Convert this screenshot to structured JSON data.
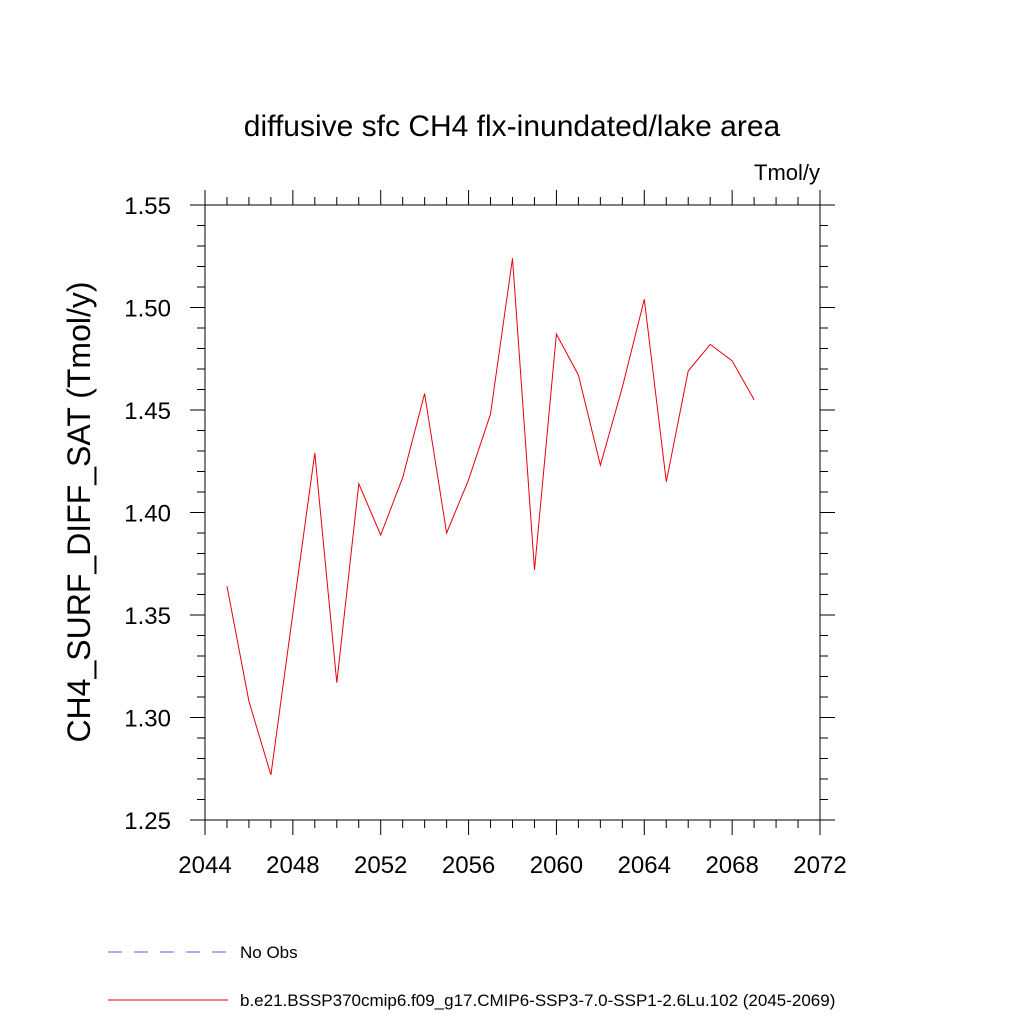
{
  "chart_data": {
    "type": "line",
    "title": "diffusive sfc CH4 flx-inundated/lake area",
    "units": "Tmol/y",
    "xlabel": "",
    "ylabel": "CH4_SURF_DIFF_SAT  (Tmol/y)",
    "xlim": [
      2044,
      2072
    ],
    "ylim": [
      1.25,
      1.55
    ],
    "x_ticks": [
      "2044",
      "2048",
      "2052",
      "2056",
      "2060",
      "2064",
      "2068",
      "2072"
    ],
    "y_ticks": [
      "1.25",
      "1.30",
      "1.35",
      "1.40",
      "1.45",
      "1.50",
      "1.55"
    ],
    "grid": false,
    "legend_position": "bottom",
    "series": [
      {
        "name": "No Obs",
        "color": "#6a5acd",
        "style": "dashed",
        "x": [],
        "values": []
      },
      {
        "name": "b.e21.BSSP370cmip6.f09_g17.CMIP6-SSP3-7.0-SSP1-2.6Lu.102 (2045-2069)",
        "color": "#e8000b",
        "style": "solid",
        "x": [
          2045,
          2046,
          2047,
          2048,
          2049,
          2050,
          2051,
          2052,
          2053,
          2054,
          2055,
          2056,
          2057,
          2058,
          2059,
          2060,
          2061,
          2062,
          2063,
          2064,
          2065,
          2066,
          2067,
          2068,
          2069
        ],
        "values": [
          1.364,
          1.308,
          1.272,
          1.351,
          1.429,
          1.317,
          1.414,
          1.389,
          1.417,
          1.458,
          1.39,
          1.416,
          1.448,
          1.524,
          1.372,
          1.487,
          1.467,
          1.423,
          1.461,
          1.504,
          1.415,
          1.469,
          1.482,
          1.474,
          1.455
        ]
      }
    ]
  }
}
